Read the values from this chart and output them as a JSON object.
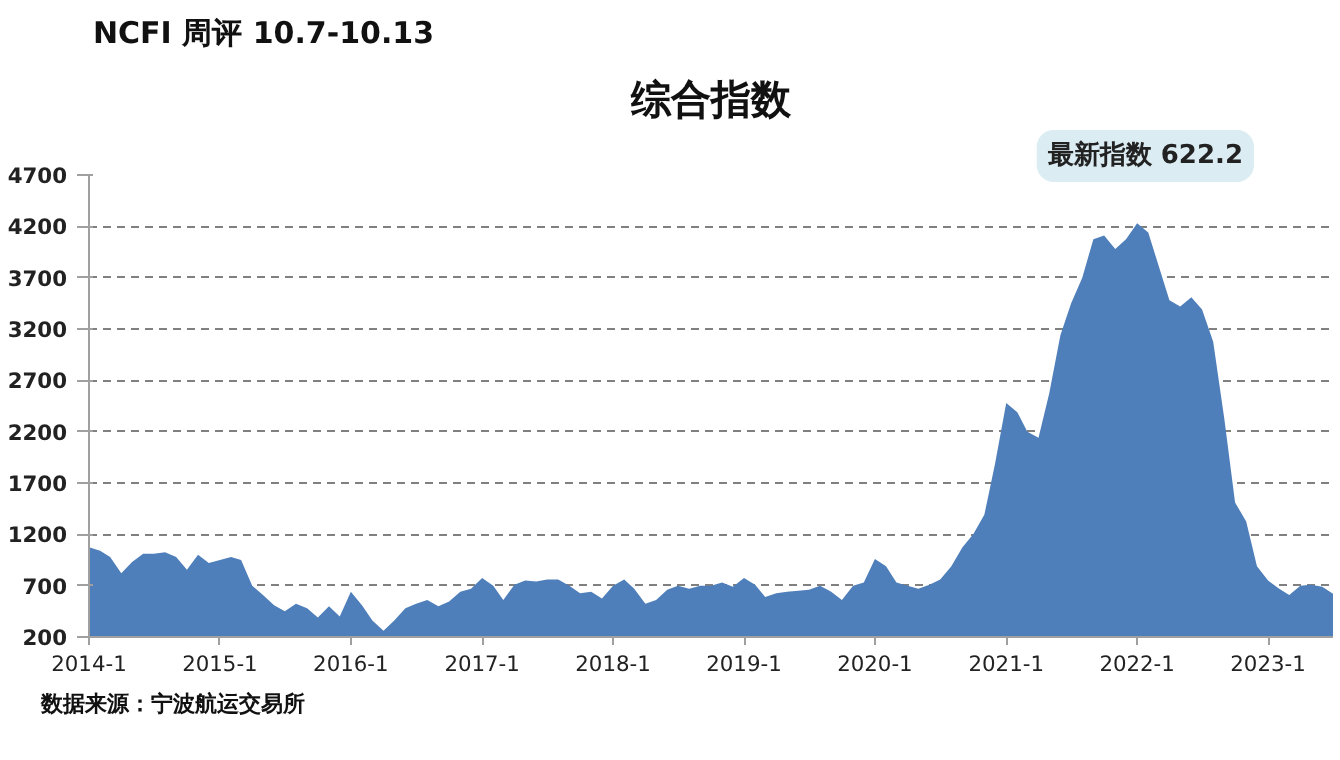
{
  "chart_data": {
    "type": "area",
    "title": "NCFI 周评 10.7-10.13",
    "subtitle": "综合指数",
    "annotations": [
      "最新指数 622.2",
      "数据来源：宁波航运交易所"
    ],
    "x": [
      "2014-01",
      "2014-02",
      "2014-03",
      "2014-04",
      "2014-05",
      "2014-06",
      "2014-07",
      "2014-08",
      "2014-09",
      "2014-10",
      "2014-11",
      "2014-12",
      "2015-01",
      "2015-02",
      "2015-03",
      "2015-04",
      "2015-05",
      "2015-06",
      "2015-07",
      "2015-08",
      "2015-09",
      "2015-10",
      "2015-11",
      "2015-12",
      "2016-01",
      "2016-02",
      "2016-03",
      "2016-04",
      "2016-05",
      "2016-06",
      "2016-07",
      "2016-08",
      "2016-09",
      "2016-10",
      "2016-11",
      "2016-12",
      "2017-01",
      "2017-02",
      "2017-03",
      "2017-04",
      "2017-05",
      "2017-06",
      "2017-07",
      "2017-08",
      "2017-09",
      "2017-10",
      "2017-11",
      "2017-12",
      "2018-01",
      "2018-02",
      "2018-03",
      "2018-04",
      "2018-05",
      "2018-06",
      "2018-07",
      "2018-08",
      "2018-09",
      "2018-10",
      "2018-11",
      "2018-12",
      "2019-01",
      "2019-02",
      "2019-03",
      "2019-04",
      "2019-05",
      "2019-06",
      "2019-07",
      "2019-08",
      "2019-09",
      "2019-10",
      "2019-11",
      "2019-12",
      "2020-01",
      "2020-02",
      "2020-03",
      "2020-04",
      "2020-05",
      "2020-06",
      "2020-07",
      "2020-08",
      "2020-09",
      "2020-10",
      "2020-11",
      "2020-12",
      "2021-01",
      "2021-02",
      "2021-03",
      "2021-04",
      "2021-05",
      "2021-06",
      "2021-07",
      "2021-08",
      "2021-09",
      "2021-10",
      "2021-11",
      "2021-12",
      "2022-01",
      "2022-02",
      "2022-03",
      "2022-04",
      "2022-05",
      "2022-06",
      "2022-07",
      "2022-08",
      "2022-09",
      "2022-10",
      "2022-11",
      "2022-12",
      "2023-01",
      "2023-02",
      "2023-03",
      "2023-04",
      "2023-05",
      "2023-06",
      "2023-07"
    ],
    "series": [
      {
        "color": "#4f7fba",
        "values": [
          1075,
          1040,
          980,
          820,
          930,
          1010,
          1010,
          1025,
          980,
          855,
          1000,
          920,
          950,
          980,
          950,
          700,
          610,
          510,
          450,
          525,
          480,
          390,
          500,
          400,
          640,
          510,
          360,
          260,
          360,
          480,
          525,
          560,
          500,
          545,
          640,
          670,
          775,
          700,
          560,
          710,
          750,
          740,
          760,
          760,
          700,
          625,
          640,
          575,
          700,
          760,
          670,
          525,
          560,
          660,
          700,
          670,
          700,
          700,
          730,
          690,
          775,
          710,
          590,
          625,
          640,
          650,
          660,
          700,
          640,
          560,
          700,
          730,
          960,
          890,
          730,
          700,
          670,
          710,
          760,
          890,
          1075,
          1200,
          1390,
          1890,
          2480,
          2390,
          2200,
          2140,
          2575,
          3140,
          3450,
          3700,
          4075,
          4110,
          3980,
          4075,
          4230,
          4140,
          3825,
          3480,
          3420,
          3510,
          3390,
          3075,
          2325,
          1510,
          1325,
          890,
          750,
          670,
          610,
          700,
          710,
          690,
          622
        ]
      }
    ],
    "xlim": [
      "2014-01",
      "2023-07"
    ],
    "xticks": [
      {
        "value": "2014-01",
        "label": "2014-1"
      },
      {
        "value": "2015-01",
        "label": "2015-1"
      },
      {
        "value": "2016-01",
        "label": "2016-1"
      },
      {
        "value": "2017-01",
        "label": "2017-1"
      },
      {
        "value": "2018-01",
        "label": "2018-1"
      },
      {
        "value": "2019-01",
        "label": "2019-1"
      },
      {
        "value": "2020-01",
        "label": "2020-1"
      },
      {
        "value": "2021-01",
        "label": "2021-1"
      },
      {
        "value": "2022-01",
        "label": "2022-1"
      },
      {
        "value": "2023-01",
        "label": "2023-1"
      }
    ],
    "ylim": [
      200,
      4700
    ],
    "yticks": [
      200,
      700,
      1200,
      1700,
      2200,
      2700,
      3200,
      3700,
      4200,
      4700
    ],
    "grid": "y"
  }
}
